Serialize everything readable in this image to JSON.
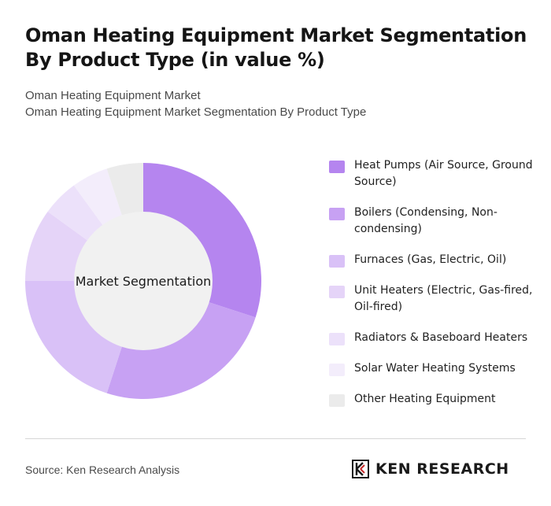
{
  "header": {
    "title": "Oman Heating Equipment Market Segmentation By Product Type (in value %)",
    "subtitle_1": "Oman Heating Equipment Market",
    "subtitle_2": "Oman Heating Equipment Market Segmentation By Product Type"
  },
  "chart_data": {
    "type": "pie",
    "variant": "donut",
    "center_label": "Market Segmentation",
    "categories": [
      "Heat Pumps (Air Source, Ground Source)",
      "Boilers (Condensing, Non-condensing)",
      "Furnaces (Gas, Electric, Oil)",
      "Unit Heaters (Electric, Gas-fired, Oil-fired)",
      "Radiators & Baseboard Heaters",
      "Solar Water Heating Systems",
      "Other Heating Equipment"
    ],
    "values": [
      30,
      25,
      20,
      10,
      5,
      5,
      5
    ],
    "colors": [
      "#b585ef",
      "#c7a1f3",
      "#d9c1f7",
      "#e5d4f8",
      "#ece1fa",
      "#f3edfb",
      "#ebebeb"
    ],
    "legend_placement": "right"
  },
  "footer": {
    "source": "Source: Ken Research Analysis",
    "brand": "KEN RESEARCH"
  }
}
